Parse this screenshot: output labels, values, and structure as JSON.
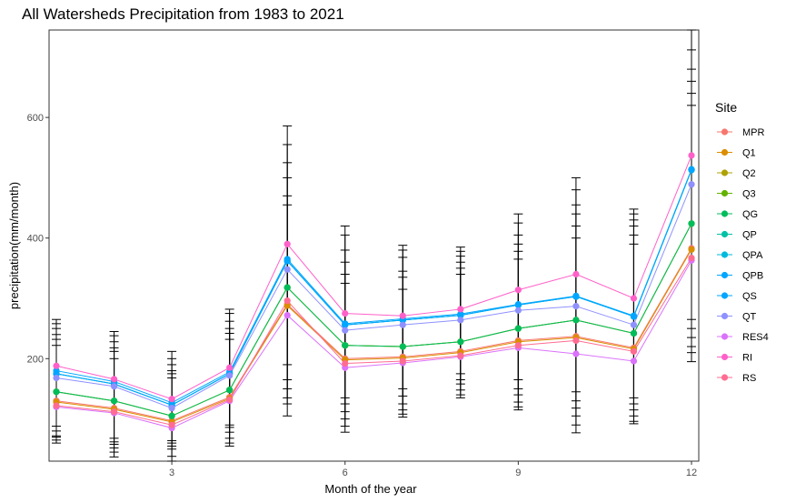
{
  "chart_data": {
    "type": "line",
    "title": "All Watersheds Precipitation from 1983 to 2021",
    "xlabel": "Month of the year",
    "ylabel": "precipitation(mm/month)",
    "xlim": [
      1,
      12
    ],
    "ylim": [
      30,
      745
    ],
    "xticks": [
      3,
      6,
      9,
      12
    ],
    "yticks": [
      200,
      400,
      600
    ],
    "legend_title": "Site",
    "legend_position": "right",
    "grid": false,
    "x": [
      1,
      2,
      3,
      4,
      5,
      6,
      7,
      8,
      9,
      10,
      11,
      12
    ],
    "series": [
      {
        "name": "MPR",
        "color": "#F8766D",
        "values": [
          130,
          118,
          97,
          136,
          290,
          200,
          203,
          212,
          230,
          237,
          218,
          383
        ]
      },
      {
        "name": "Q1",
        "color": "#DB8E00",
        "values": [
          128,
          116,
          95,
          134,
          288,
          198,
          201,
          210,
          228,
          235,
          216,
          381
        ]
      },
      {
        "name": "Q2",
        "color": "#AEA200",
        "values": [
          145,
          130,
          105,
          148,
          318,
          222,
          220,
          228,
          250,
          264,
          242,
          424
        ]
      },
      {
        "name": "Q3",
        "color": "#64B200",
        "values": [
          145,
          130,
          105,
          148,
          318,
          222,
          220,
          228,
          250,
          264,
          242,
          424
        ]
      },
      {
        "name": "QG",
        "color": "#00BD5C",
        "values": [
          145,
          130,
          105,
          148,
          318,
          222,
          220,
          228,
          250,
          264,
          242,
          424
        ]
      },
      {
        "name": "QP",
        "color": "#00C1A7",
        "values": [
          175,
          158,
          123,
          175,
          362,
          256,
          264,
          272,
          289,
          303,
          270,
          513
        ]
      },
      {
        "name": "QPA",
        "color": "#00BADE",
        "values": [
          175,
          158,
          123,
          175,
          362,
          256,
          264,
          272,
          289,
          303,
          270,
          513
        ]
      },
      {
        "name": "QPB",
        "color": "#00A6FF",
        "values": [
          175,
          158,
          123,
          175,
          362,
          256,
          264,
          272,
          289,
          303,
          270,
          513
        ]
      },
      {
        "name": "QS",
        "color": "#00A6FF",
        "values": [
          180,
          162,
          127,
          178,
          365,
          258,
          266,
          274,
          290,
          304,
          271,
          514
        ]
      },
      {
        "name": "QT",
        "color": "#8F91FF",
        "values": [
          168,
          154,
          118,
          172,
          348,
          247,
          256,
          264,
          280,
          287,
          256,
          489
        ]
      },
      {
        "name": "RES4",
        "color": "#DB72FB",
        "values": [
          120,
          110,
          85,
          130,
          272,
          185,
          193,
          203,
          218,
          208,
          196,
          363
        ]
      },
      {
        "name": "RI",
        "color": "#FF61C9",
        "values": [
          188,
          166,
          133,
          185,
          390,
          275,
          271,
          282,
          314,
          340,
          300,
          537
        ]
      },
      {
        "name": "RS",
        "color": "#FF6C91",
        "values": [
          122,
          112,
          90,
          132,
          296,
          192,
          196,
          205,
          222,
          230,
          212,
          367
        ]
      }
    ],
    "error_bars": [
      {
        "x": 1,
        "ranges": [
          [
            60,
            265
          ],
          [
            65,
            258
          ],
          [
            70,
            250
          ],
          [
            72,
            240
          ],
          [
            80,
            232
          ],
          [
            88,
            222
          ]
        ]
      },
      {
        "x": 2,
        "ranges": [
          [
            37,
            245
          ],
          [
            45,
            238
          ],
          [
            52,
            228
          ],
          [
            58,
            218
          ],
          [
            62,
            212
          ],
          [
            68,
            200
          ]
        ]
      },
      {
        "x": 3,
        "ranges": [
          [
            30,
            212
          ],
          [
            38,
            200
          ],
          [
            50,
            190
          ],
          [
            55,
            180
          ],
          [
            60,
            175
          ],
          [
            64,
            168
          ]
        ]
      },
      {
        "x": 4,
        "ranges": [
          [
            55,
            282
          ],
          [
            60,
            275
          ],
          [
            68,
            262
          ],
          [
            78,
            250
          ],
          [
            86,
            242
          ],
          [
            90,
            232
          ]
        ]
      },
      {
        "x": 5,
        "ranges": [
          [
            105,
            586
          ],
          [
            125,
            555
          ],
          [
            135,
            525
          ],
          [
            150,
            500
          ],
          [
            165,
            470
          ],
          [
            190,
            455
          ]
        ]
      },
      {
        "x": 6,
        "ranges": [
          [
            78,
            420
          ],
          [
            88,
            405
          ],
          [
            100,
            380
          ],
          [
            112,
            360
          ],
          [
            125,
            340
          ],
          [
            135,
            325
          ]
        ]
      },
      {
        "x": 7,
        "ranges": [
          [
            103,
            388
          ],
          [
            108,
            380
          ],
          [
            115,
            368
          ],
          [
            125,
            345
          ],
          [
            138,
            335
          ],
          [
            150,
            315
          ]
        ]
      },
      {
        "x": 8,
        "ranges": [
          [
            135,
            385
          ],
          [
            140,
            378
          ],
          [
            148,
            370
          ],
          [
            158,
            360
          ],
          [
            165,
            350
          ],
          [
            175,
            340
          ]
        ]
      },
      {
        "x": 9,
        "ranges": [
          [
            115,
            440
          ],
          [
            120,
            425
          ],
          [
            128,
            405
          ],
          [
            140,
            390
          ],
          [
            150,
            378
          ],
          [
            165,
            365
          ]
        ]
      },
      {
        "x": 10,
        "ranges": [
          [
            77,
            500
          ],
          [
            90,
            480
          ],
          [
            105,
            455
          ],
          [
            118,
            440
          ],
          [
            130,
            420
          ],
          [
            145,
            400
          ]
        ]
      },
      {
        "x": 11,
        "ranges": [
          [
            92,
            448
          ],
          [
            96,
            440
          ],
          [
            105,
            430
          ],
          [
            115,
            420
          ],
          [
            125,
            405
          ],
          [
            135,
            390
          ]
        ]
      },
      {
        "x": 12,
        "ranges": [
          [
            195,
            745
          ],
          [
            210,
            712
          ],
          [
            220,
            680
          ],
          [
            235,
            660
          ],
          [
            250,
            640
          ],
          [
            265,
            620
          ]
        ]
      }
    ]
  }
}
